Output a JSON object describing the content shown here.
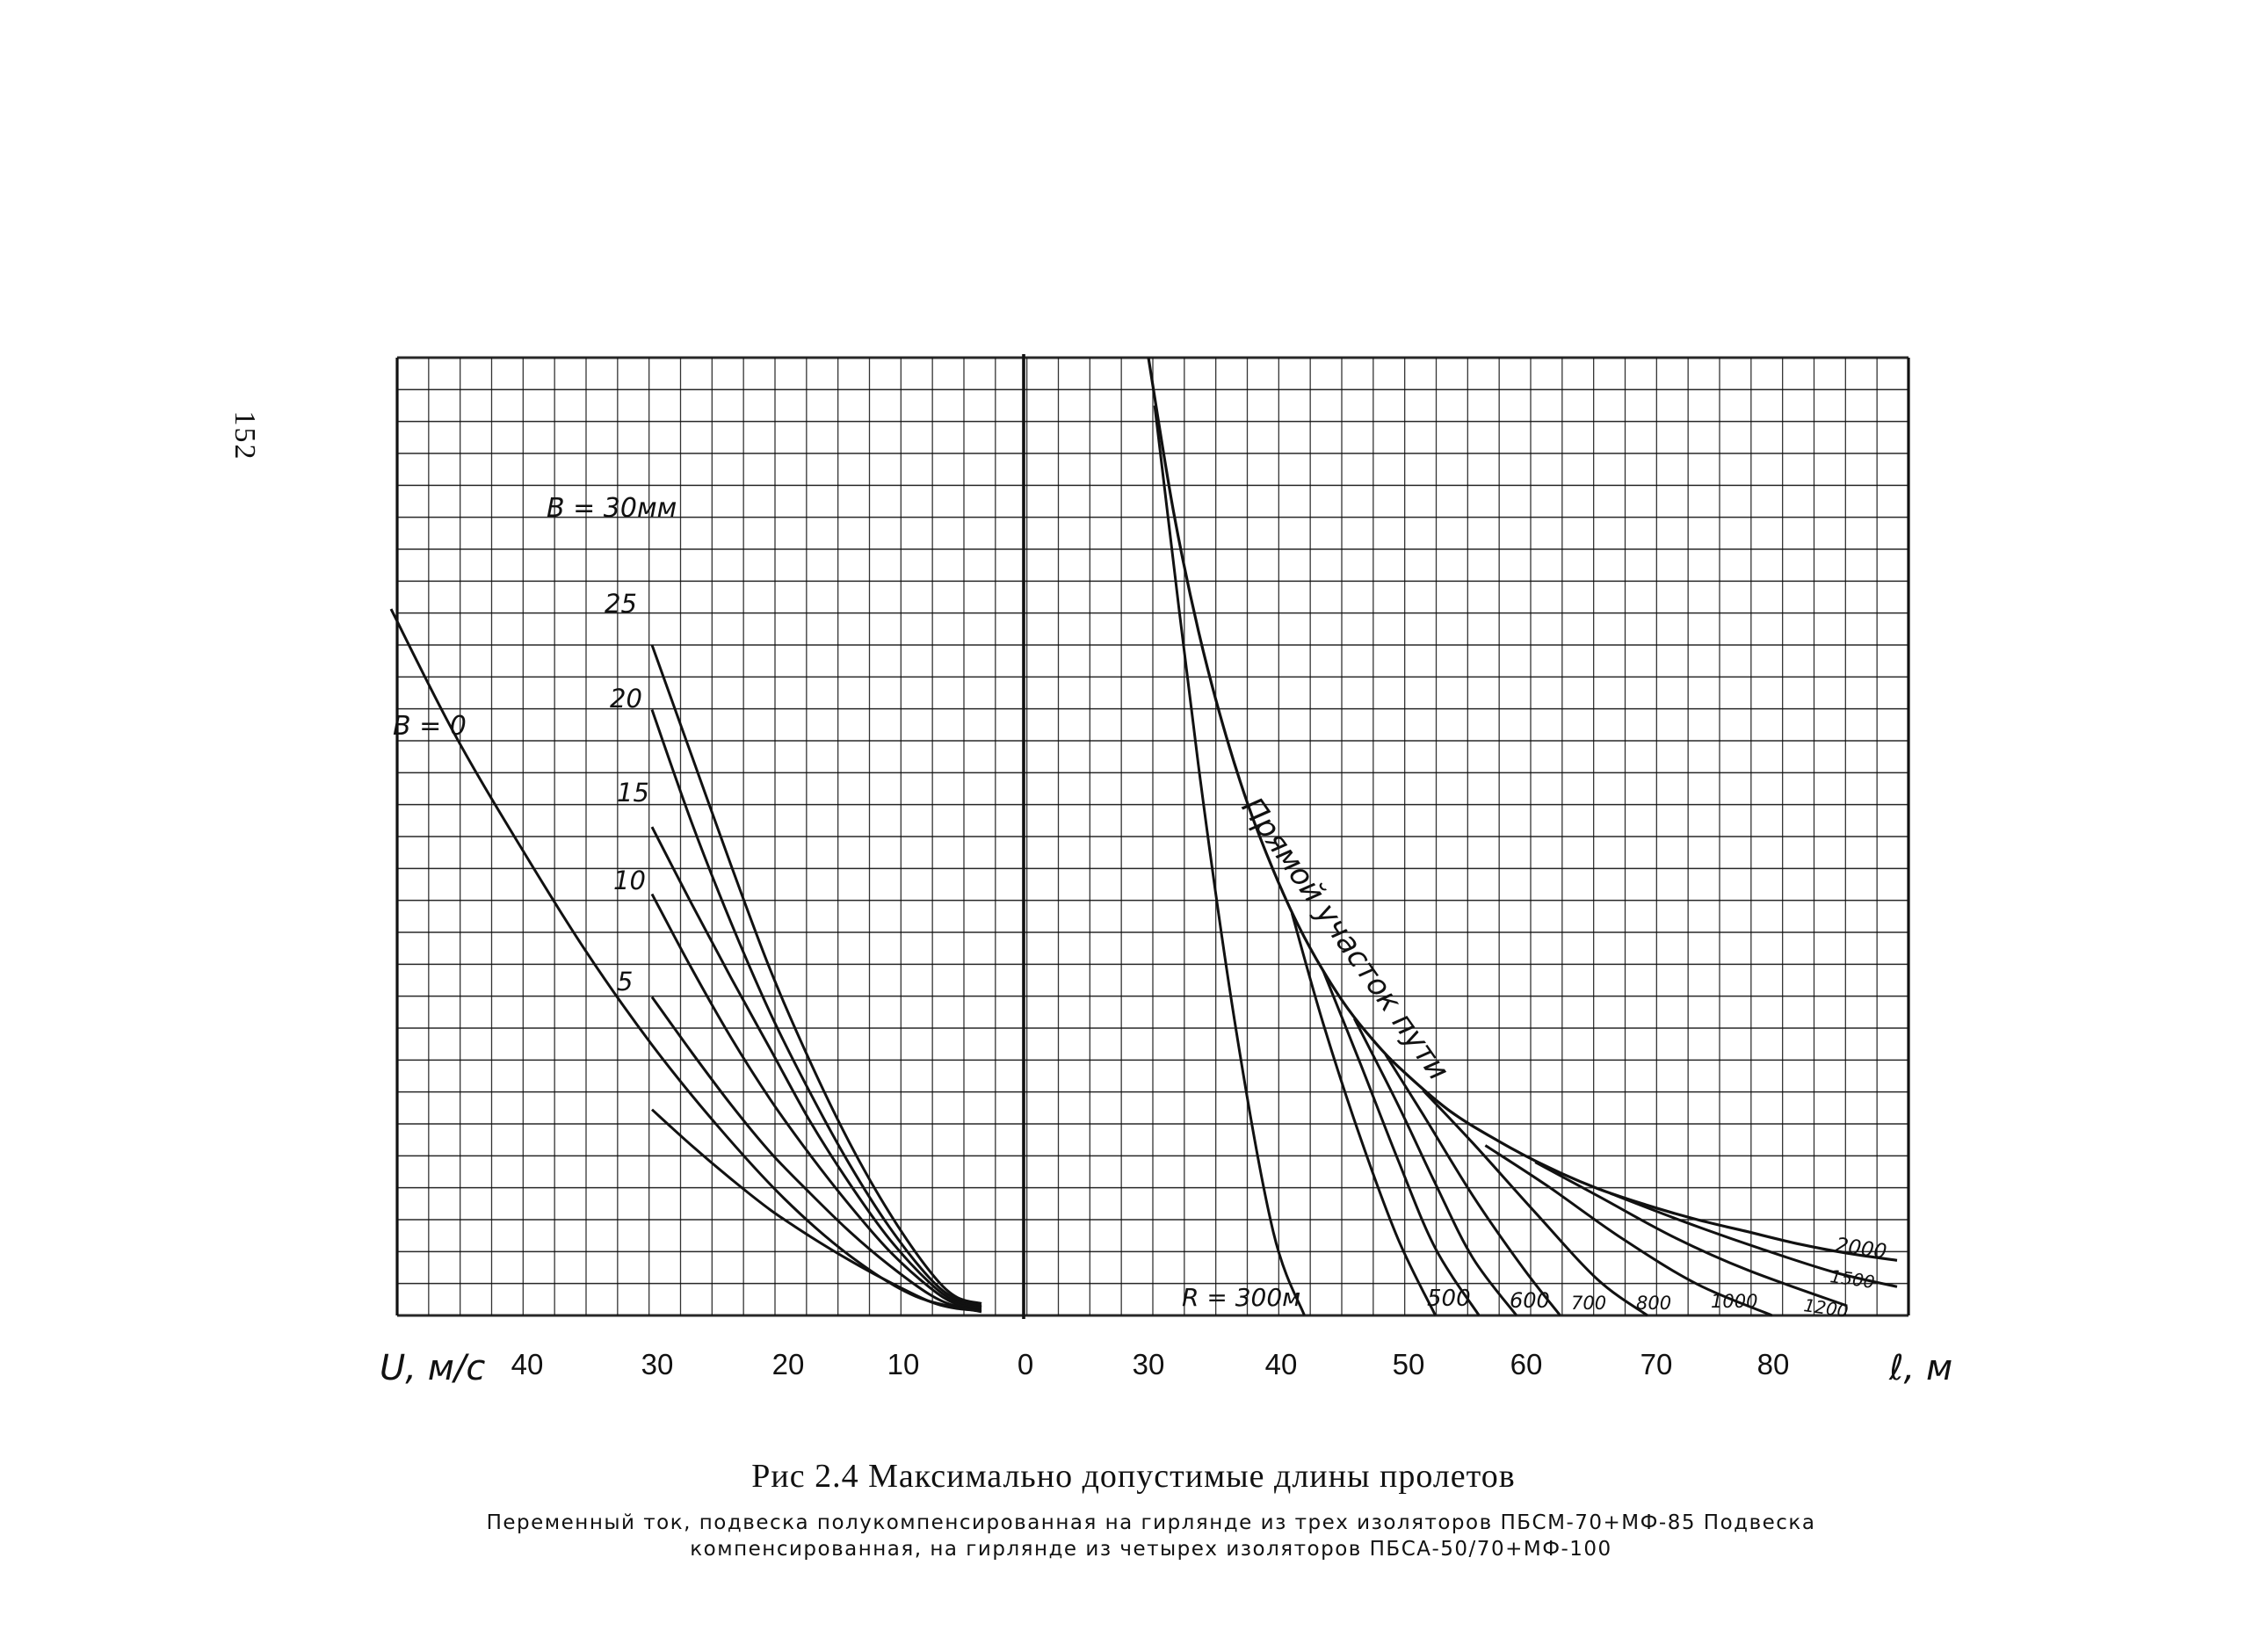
{
  "page_number": "152",
  "caption": "Рис 2.4 Максимально допустимые длины пролетов",
  "subcaption": "Переменный ток, подвеска полукомпенсированная на гирлянде из трех изоляторов ПБСМ-70+МФ-85 Подвеска компенсированная, на гирлянде из четырех изоляторов ПБСА-50/70+МФ-100",
  "colors": {
    "ink": "#111111",
    "background": "#ffffff"
  },
  "chart_data": [
    {
      "type": "line",
      "panel": "left",
      "xlabel": "U, м/с",
      "x_ticks": [
        "40",
        "30",
        "20",
        "10"
      ],
      "x_range": [
        50,
        0
      ],
      "note": "",
      "curve_labels": [
        "В = 30мм",
        "25",
        "20",
        "15",
        "10",
        "5",
        "В = 0"
      ],
      "series": [
        {
          "name": "В = 30мм",
          "x": [
            30,
            27,
            24,
            21,
            18,
            15,
            12,
            9,
            7,
            5
          ],
          "y": [
            28,
            23.4,
            18.8,
            14.4,
            10.6,
            7.2,
            4.3,
            1.9,
            0.8,
            0.5
          ]
        },
        {
          "name": "25",
          "x": [
            30,
            27,
            24,
            21,
            18,
            15,
            12,
            9,
            7,
            5
          ],
          "y": [
            25.3,
            20.6,
            16.4,
            12.6,
            9.3,
            6.3,
            3.7,
            1.6,
            0.7,
            0.4
          ]
        },
        {
          "name": "20",
          "x": [
            30,
            27,
            24,
            21,
            18,
            15,
            12,
            9,
            7,
            5
          ],
          "y": [
            20.4,
            17.2,
            14.1,
            11.1,
            8.1,
            5.5,
            3.2,
            1.4,
            0.6,
            0.35
          ]
        },
        {
          "name": "15",
          "x": [
            30,
            27,
            24,
            21,
            18,
            15,
            12,
            9,
            7,
            5
          ],
          "y": [
            17.6,
            14.5,
            11.6,
            9.0,
            6.7,
            4.6,
            2.7,
            1.2,
            0.5,
            0.3
          ]
        },
        {
          "name": "10",
          "x": [
            30,
            27,
            24,
            21,
            18,
            15,
            12,
            9,
            7,
            5
          ],
          "y": [
            13.3,
            11.0,
            8.8,
            6.8,
            5.1,
            3.5,
            2.1,
            0.9,
            0.4,
            0.25
          ]
        },
        {
          "name": "5",
          "x": [
            30,
            27,
            24,
            21,
            18,
            15,
            12,
            9,
            7,
            5
          ],
          "y": [
            8.6,
            7.1,
            5.7,
            4.4,
            3.3,
            2.3,
            1.4,
            0.6,
            0.3,
            0.2
          ]
        },
        {
          "name": "В = 0",
          "x": [
            49.8,
            45,
            40,
            35,
            30,
            25,
            20,
            15,
            10,
            5
          ],
          "y": [
            29.5,
            24.3,
            19.6,
            15.2,
            11.3,
            7.9,
            4.9,
            2.5,
            0.8,
            0.15
          ]
        }
      ]
    },
    {
      "type": "line",
      "panel": "right",
      "xlabel": "ℓ, м",
      "x_ticks": [
        "0",
        "30",
        "40",
        "50",
        "60",
        "70",
        "80"
      ],
      "x_range": [
        20,
        90
      ],
      "curve_labels": [
        "Прямой участок пути",
        "R = 300м",
        "500",
        "600",
        "700",
        "800",
        "1000",
        "1200",
        "1500",
        "2000"
      ],
      "envelope": {
        "name": "Прямой участок пути",
        "x": [
          30,
          32,
          34,
          36,
          38,
          40,
          42,
          44,
          46,
          48,
          50,
          54,
          58,
          62,
          66,
          70,
          74,
          78,
          82,
          86,
          90
        ],
        "y": [
          40,
          33.6,
          28.6,
          24.6,
          21.3,
          18.6,
          16.3,
          14.4,
          12.8,
          11.5,
          10.4,
          8.6,
          7.3,
          6.2,
          5.3,
          4.6,
          4.0,
          3.5,
          3.0,
          2.6,
          2.3
        ]
      },
      "series": [
        {
          "name": "R = 300м",
          "x": [
            30.5,
            34,
            37,
            40,
            42.5
          ],
          "y": [
            38,
            23,
            12,
            3.5,
            0
          ]
        },
        {
          "name": "500",
          "x": [
            41.5,
            44,
            47,
            50,
            53
          ],
          "y": [
            16.8,
            12.2,
            7.4,
            3.2,
            0
          ]
        },
        {
          "name": "600",
          "x": [
            44,
            47,
            50,
            53,
            56.5
          ],
          "y": [
            14.4,
            10.5,
            6.5,
            2.8,
            0
          ]
        },
        {
          "name": "700",
          "x": [
            46.5,
            50,
            53,
            56,
            59.5
          ],
          "y": [
            12.4,
            8.8,
            5.5,
            2.4,
            0
          ]
        },
        {
          "name": "800",
          "x": [
            49,
            52,
            56,
            60,
            63
          ],
          "y": [
            10.9,
            8.4,
            5.0,
            2.0,
            0
          ]
        },
        {
          "name": "1000",
          "x": [
            52,
            56,
            61,
            66,
            70
          ],
          "y": [
            9.4,
            7.2,
            4.3,
            1.5,
            0
          ]
        },
        {
          "name": "1200",
          "x": [
            57,
            62,
            68,
            74,
            80
          ],
          "y": [
            7.1,
            5.4,
            3.2,
            1.3,
            0
          ]
        },
        {
          "name": "1500",
          "x": [
            61,
            66,
            72,
            78,
            86
          ],
          "y": [
            6.4,
            5.0,
            3.3,
            1.9,
            0.4
          ]
        },
        {
          "name": "2000",
          "x": [
            67,
            73,
            79,
            85,
            90
          ],
          "y": [
            5.1,
            3.9,
            2.8,
            1.8,
            1.2
          ]
        }
      ]
    }
  ]
}
